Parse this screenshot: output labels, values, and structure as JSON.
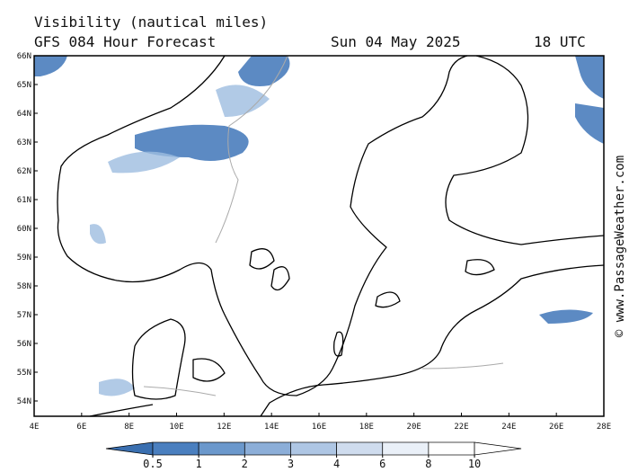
{
  "header": {
    "title": "Visibility (nautical miles)",
    "forecast": "GFS 084 Hour Forecast",
    "date": "Sun 04 May 2025",
    "time": "18 UTC"
  },
  "map": {
    "latitude_labels": [
      "66N",
      "65N",
      "64N",
      "63N",
      "62N",
      "61N",
      "60N",
      "59N",
      "58N",
      "57N",
      "56N",
      "55N",
      "54N"
    ],
    "longitude_labels": [
      "4E",
      "6E",
      "8E",
      "10E",
      "12E",
      "14E",
      "16E",
      "18E",
      "20E",
      "22E",
      "24E",
      "26E",
      "28E"
    ]
  },
  "legend": {
    "values": [
      0.5,
      1,
      2,
      3,
      4,
      6,
      8,
      10
    ]
  },
  "credit": "© www.PassageWeather.com"
}
